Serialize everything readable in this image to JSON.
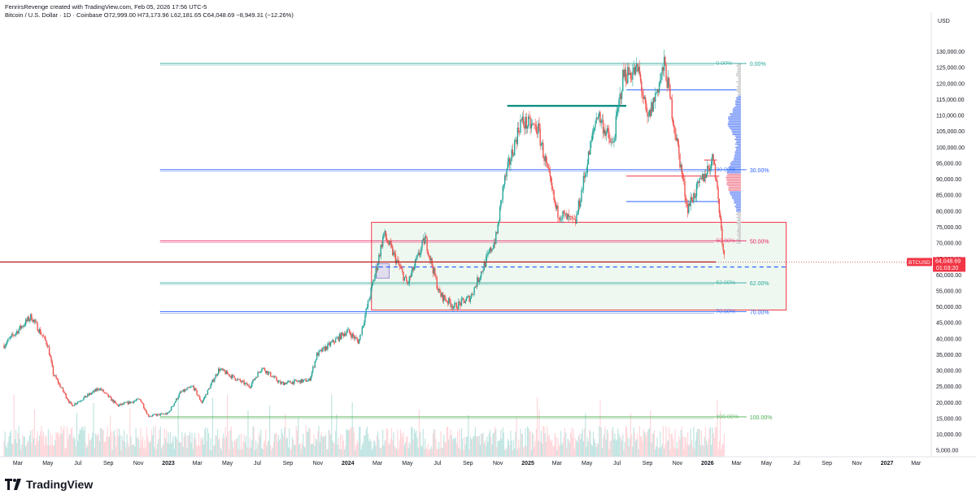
{
  "header": {
    "credit": "FenrirsRevenge created with TradingView.com, Feb 05, 2026 17:56 UTC-5",
    "ohlc": "Bitcoin / U.S. Dollar · 1D · Coinbase  O72,999.00  H73,173.96  L62,181.65  C64,048.69  −8,949.31 (−12.26%)"
  },
  "footer": {
    "brand": "TradingView"
  },
  "colors": {
    "up": "#26a69a",
    "down": "#ef5350",
    "fib_green": "#26a69a",
    "fib_blue": "#2962ff",
    "fib_red": "#e91e63",
    "fib_100": "#4caf50",
    "box": "#f23645",
    "box_fill": "#e8f5e9",
    "price_line": "#b71c1c",
    "last_tag": "#f23645",
    "volume_profile": "#2962ff"
  },
  "chart_data": {
    "type": "candlestick",
    "title": "Bitcoin / U.S. Dollar · 1D · Coinbase",
    "currency": "USD",
    "ylim": [
      3000,
      136000
    ],
    "y_ticks": [
      "130,000.00",
      "125,000.00",
      "120,000.00",
      "115,000.00",
      "110,000.00",
      "105,000.00",
      "100,000.00",
      "95,000.00",
      "90,000.00",
      "85,000.00",
      "80,000.00",
      "75,000.00",
      "70,000.00",
      "65,000.00",
      "60,000.00",
      "55,000.00",
      "50,000.00",
      "45,000.00",
      "40,000.00",
      "35,000.00",
      "30,000.00",
      "25,000.00",
      "20,000.00",
      "15,000.00",
      "10,000.00",
      "5,000.00"
    ],
    "x_ticks": [
      "Mar",
      "May",
      "Jul",
      "Sep",
      "Nov",
      "2023",
      "Mar",
      "May",
      "Jul",
      "Sep",
      "Nov",
      "2024",
      "Mar",
      "May",
      "Jul",
      "Sep",
      "Nov",
      "2025",
      "Mar",
      "May",
      "Jul",
      "Sep",
      "Nov",
      "2026",
      "Mar",
      "May",
      "Jul",
      "Sep",
      "Nov",
      "2027",
      "Mar"
    ],
    "x_start": "2022-02-01",
    "x_end": "2027-04-01",
    "price_path": [
      [
        "2022-02-01",
        38000
      ],
      [
        "2022-03-28",
        47000
      ],
      [
        "2022-05-01",
        38000
      ],
      [
        "2022-05-12",
        29000
      ],
      [
        "2022-06-18",
        19000
      ],
      [
        "2022-08-14",
        24500
      ],
      [
        "2022-09-20",
        19000
      ],
      [
        "2022-11-05",
        21000
      ],
      [
        "2022-11-21",
        15800
      ],
      [
        "2022-12-31",
        16500
      ],
      [
        "2023-01-25",
        23000
      ],
      [
        "2023-02-20",
        25000
      ],
      [
        "2023-03-10",
        20000
      ],
      [
        "2023-04-14",
        30500
      ],
      [
        "2023-06-15",
        25000
      ],
      [
        "2023-07-10",
        31000
      ],
      [
        "2023-08-17",
        26000
      ],
      [
        "2023-10-15",
        27000
      ],
      [
        "2023-10-30",
        35000
      ],
      [
        "2023-12-31",
        42500
      ],
      [
        "2024-01-23",
        39000
      ],
      [
        "2024-02-28",
        62000
      ],
      [
        "2024-03-14",
        73000
      ],
      [
        "2024-05-01",
        57000
      ],
      [
        "2024-06-06",
        71500
      ],
      [
        "2024-07-05",
        54000
      ],
      [
        "2024-08-05",
        50000
      ],
      [
        "2024-09-06",
        53000
      ],
      [
        "2024-10-29",
        72000
      ],
      [
        "2024-11-12",
        88000
      ],
      [
        "2024-12-17",
        108000
      ],
      [
        "2025-01-21",
        106000
      ],
      [
        "2025-02-28",
        80000
      ],
      [
        "2025-04-07",
        76000
      ],
      [
        "2025-05-22",
        111000
      ],
      [
        "2025-06-22",
        100000
      ],
      [
        "2025-07-14",
        122800
      ],
      [
        "2025-08-14",
        124000
      ],
      [
        "2025-09-01",
        108000
      ],
      [
        "2025-10-06",
        126000
      ],
      [
        "2025-11-21",
        81000
      ],
      [
        "2026-01-14",
        97000
      ],
      [
        "2026-02-05",
        64048.69
      ]
    ],
    "horizontal_lines": [
      {
        "price": 113000,
        "x0": "2024-11-20",
        "x1": "2025-07-20",
        "color": "#00897b"
      },
      {
        "price": 118000,
        "x0": "2025-07-20",
        "x1": "2026-03-01",
        "color": "#2962ff"
      },
      {
        "price": 91000,
        "x0": "2025-07-20",
        "x1": "2026-01-25",
        "color": "#f23645"
      },
      {
        "price": 83000,
        "x0": "2025-07-20",
        "x1": "2026-01-25",
        "color": "#2962ff"
      },
      {
        "price": 96000,
        "x0": "2025-12-25",
        "x1": "2026-01-20",
        "color": "#f23645"
      }
    ],
    "fib_levels": [
      {
        "label": "0.00%",
        "price": 126300,
        "color": "#26a69a"
      },
      {
        "label": "30.00%",
        "price": 93000,
        "color": "#2962ff"
      },
      {
        "label": "50.00%",
        "price": 70700,
        "color": "#e91e63"
      },
      {
        "label": "62.00%",
        "price": 57500,
        "color": "#26a69a"
      },
      {
        "label": "70.00%",
        "price": 48500,
        "color": "#2962ff"
      },
      {
        "label": "100.00%",
        "price": 15500,
        "color": "#4caf50"
      }
    ],
    "fib_x0": "2022-12-15",
    "fib_label1_x": "2026-01-15",
    "fib_label2_x": "2026-03-28",
    "box": {
      "x0": "2024-02-18",
      "x1": "2026-06-10",
      "y0": 76500,
      "y1": 49000
    },
    "small_box": {
      "x0": "2024-02-28",
      "x1": "2024-03-25",
      "y0": 63500,
      "y1": 59000
    },
    "dashed_line": {
      "price": 62500,
      "x0": "2024-02-18",
      "x1": "2026-06-10",
      "color": "#2962ff"
    },
    "last_price_line": {
      "price": 64048.69,
      "color": "#b71c1c"
    },
    "last_price_label": "BTCUSD",
    "last_price": "64,048.69",
    "countdown": "01:03:20",
    "volume_profile_x": "2026-03-10"
  }
}
